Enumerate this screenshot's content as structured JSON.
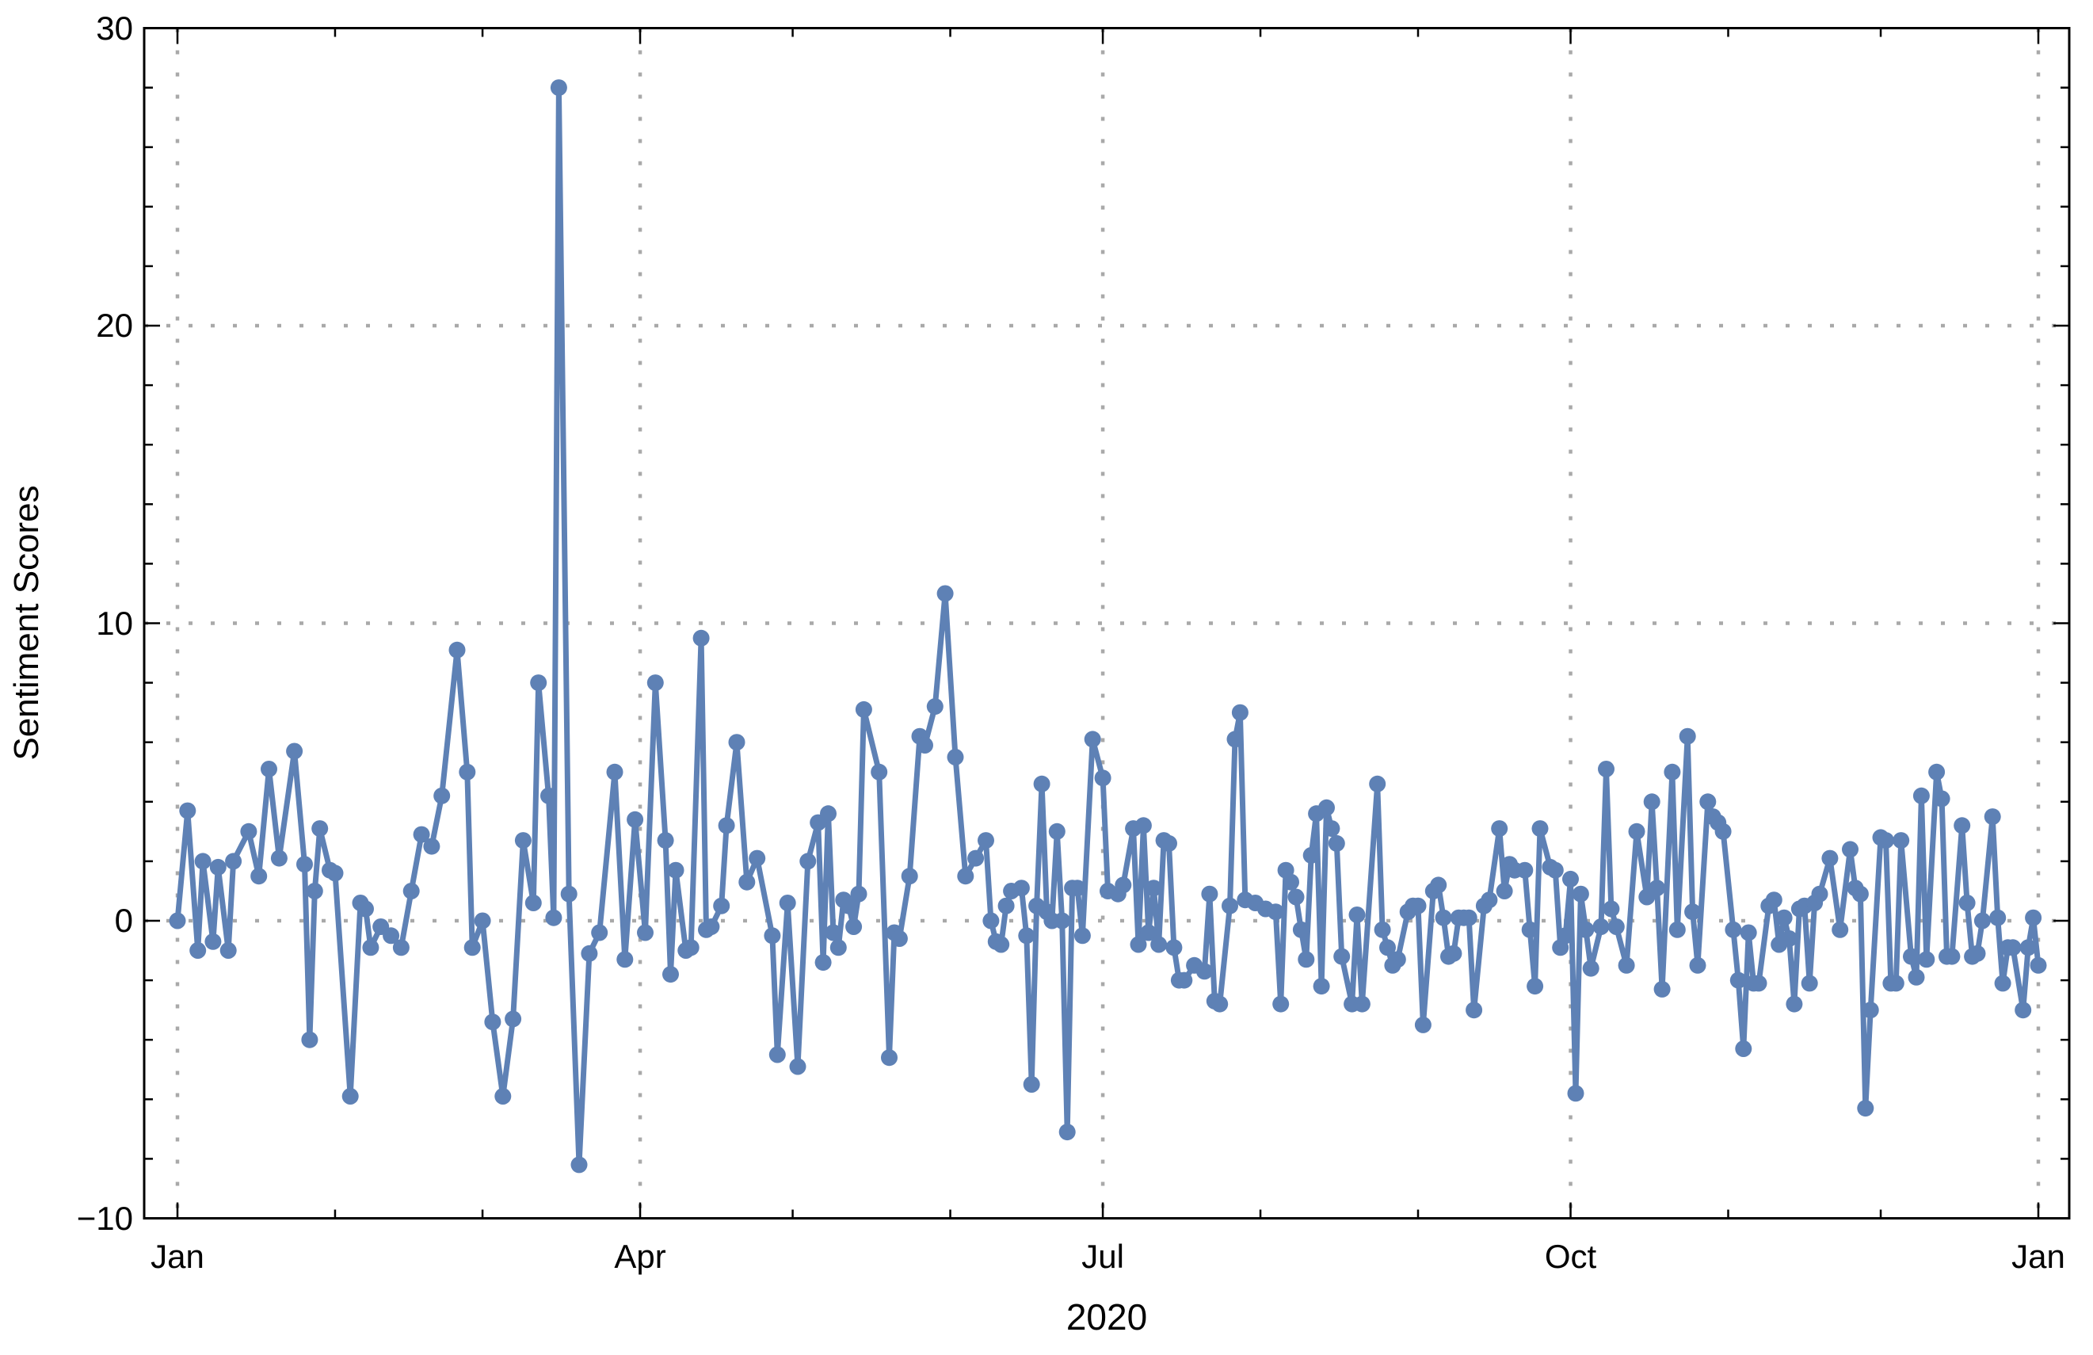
{
  "chart_data": {
    "type": "line",
    "title": "",
    "ylabel": "Sentiment Scores",
    "year_label": "2020",
    "legend": null,
    "grid": "dotted, at labeled major ticks only",
    "line_color": "#5E81B5",
    "grid_color": "#A9A9A9",
    "frame_color": "#000000",
    "ylim": [
      -10,
      30
    ],
    "xlim_days": [
      0,
      366
    ],
    "y_major_ticks": [
      -10,
      0,
      10,
      20,
      30
    ],
    "y_minor_tick_step": 2,
    "y_gridline_values": [
      0,
      10,
      20
    ],
    "x_month_tick_days": [
      0,
      31,
      60,
      91,
      121,
      152,
      182,
      213,
      244,
      274,
      305,
      335,
      366
    ],
    "x_major_ticks": [
      {
        "day": 0,
        "label": "Jan"
      },
      {
        "day": 91,
        "label": "Apr"
      },
      {
        "day": 182,
        "label": "Jul"
      },
      {
        "day": 274,
        "label": "Oct"
      },
      {
        "day": 366,
        "label": "Jan"
      }
    ],
    "series": [
      {
        "name": "Sentiment Scores",
        "color": "#5E81B5",
        "marker": "filled-circle",
        "points": [
          [
            0,
            0
          ],
          [
            2,
            3.7
          ],
          [
            4,
            -1
          ],
          [
            5,
            2
          ],
          [
            7,
            -0.7
          ],
          [
            8,
            1.8
          ],
          [
            10,
            -1
          ],
          [
            11,
            2
          ],
          [
            14,
            3
          ],
          [
            16,
            1.5
          ],
          [
            18,
            5.1
          ],
          [
            20,
            2.1
          ],
          [
            23,
            5.7
          ],
          [
            25,
            1.9
          ],
          [
            26,
            -4
          ],
          [
            27,
            1
          ],
          [
            28,
            3.1
          ],
          [
            30,
            1.7
          ],
          [
            31,
            1.6
          ],
          [
            34,
            -5.9
          ],
          [
            36,
            0.6
          ],
          [
            37,
            0.4
          ],
          [
            38,
            -0.9
          ],
          [
            40,
            -0.2
          ],
          [
            42,
            -0.5
          ],
          [
            44,
            -0.9
          ],
          [
            46,
            1
          ],
          [
            48,
            2.9
          ],
          [
            50,
            2.5
          ],
          [
            52,
            4.2
          ],
          [
            55,
            9.1
          ],
          [
            57,
            5
          ],
          [
            58,
            -0.9
          ],
          [
            60,
            0
          ],
          [
            62,
            -3.4
          ],
          [
            64,
            -5.9
          ],
          [
            66,
            -3.3
          ],
          [
            68,
            2.7
          ],
          [
            70,
            0.6
          ],
          [
            71,
            8
          ],
          [
            73,
            4.2
          ],
          [
            74,
            0.1
          ],
          [
            75,
            28
          ],
          [
            77,
            0.9
          ],
          [
            79,
            -8.2
          ],
          [
            81,
            -1.1
          ],
          [
            83,
            -0.4
          ],
          [
            86,
            5
          ],
          [
            88,
            -1.3
          ],
          [
            90,
            3.4
          ],
          [
            92,
            -0.4
          ],
          [
            94,
            8
          ],
          [
            96,
            2.7
          ],
          [
            97,
            -1.8
          ],
          [
            98,
            1.7
          ],
          [
            100,
            -1
          ],
          [
            101,
            -0.9
          ],
          [
            103,
            9.5
          ],
          [
            104,
            -0.3
          ],
          [
            105,
            -0.2
          ],
          [
            107,
            0.5
          ],
          [
            108,
            3.2
          ],
          [
            110,
            6
          ],
          [
            112,
            1.3
          ],
          [
            114,
            2.1
          ],
          [
            117,
            -0.5
          ],
          [
            118,
            -4.5
          ],
          [
            120,
            0.6
          ],
          [
            122,
            -4.9
          ],
          [
            124,
            2
          ],
          [
            126,
            3.3
          ],
          [
            127,
            -1.4
          ],
          [
            128,
            3.6
          ],
          [
            129,
            -0.4
          ],
          [
            130,
            -0.9
          ],
          [
            131,
            0.7
          ],
          [
            132,
            0.5
          ],
          [
            133,
            -0.2
          ],
          [
            134,
            0.9
          ],
          [
            135,
            7.1
          ],
          [
            138,
            5
          ],
          [
            140,
            -4.6
          ],
          [
            141,
            -0.4
          ],
          [
            142,
            -0.6
          ],
          [
            144,
            1.5
          ],
          [
            146,
            6.2
          ],
          [
            147,
            5.9
          ],
          [
            149,
            7.2
          ],
          [
            151,
            11
          ],
          [
            153,
            5.5
          ],
          [
            155,
            1.5
          ],
          [
            157,
            2.1
          ],
          [
            159,
            2.7
          ],
          [
            160,
            0
          ],
          [
            161,
            -0.7
          ],
          [
            162,
            -0.8
          ],
          [
            163,
            0.5
          ],
          [
            164,
            1
          ],
          [
            166,
            1.1
          ],
          [
            167,
            -0.5
          ],
          [
            168,
            -5.5
          ],
          [
            169,
            0.5
          ],
          [
            170,
            4.6
          ],
          [
            171,
            0.3
          ],
          [
            172,
            0
          ],
          [
            173,
            3
          ],
          [
            174,
            0
          ],
          [
            175,
            -7.1
          ],
          [
            176,
            1.1
          ],
          [
            177,
            1.1
          ],
          [
            178,
            -0.5
          ],
          [
            180,
            6.1
          ],
          [
            182,
            4.8
          ],
          [
            183,
            1
          ],
          [
            185,
            0.9
          ],
          [
            186,
            1.2
          ],
          [
            188,
            3.1
          ],
          [
            189,
            -0.8
          ],
          [
            190,
            3.2
          ],
          [
            191,
            -0.4
          ],
          [
            192,
            1.1
          ],
          [
            193,
            -0.8
          ],
          [
            194,
            2.7
          ],
          [
            195,
            2.6
          ],
          [
            196,
            -0.9
          ],
          [
            197,
            -2
          ],
          [
            198,
            -2
          ],
          [
            200,
            -1.5
          ],
          [
            202,
            -1.7
          ],
          [
            203,
            0.9
          ],
          [
            204,
            -2.7
          ],
          [
            205,
            -2.8
          ],
          [
            207,
            0.5
          ],
          [
            208,
            6.1
          ],
          [
            209,
            7
          ],
          [
            210,
            0.7
          ],
          [
            212,
            0.6
          ],
          [
            214,
            0.4
          ],
          [
            216,
            0.3
          ],
          [
            217,
            -2.8
          ],
          [
            218,
            1.7
          ],
          [
            219,
            1.3
          ],
          [
            220,
            0.8
          ],
          [
            221,
            -0.3
          ],
          [
            222,
            -1.3
          ],
          [
            223,
            2.2
          ],
          [
            224,
            3.6
          ],
          [
            225,
            -2.2
          ],
          [
            226,
            3.8
          ],
          [
            227,
            3.1
          ],
          [
            228,
            2.6
          ],
          [
            229,
            -1.2
          ],
          [
            231,
            -2.8
          ],
          [
            232,
            0.2
          ],
          [
            233,
            -2.8
          ],
          [
            236,
            4.6
          ],
          [
            237,
            -0.3
          ],
          [
            238,
            -0.9
          ],
          [
            239,
            -1.5
          ],
          [
            240,
            -1.3
          ],
          [
            242,
            0.3
          ],
          [
            243,
            0.5
          ],
          [
            244,
            0.5
          ],
          [
            245,
            -3.5
          ],
          [
            247,
            1
          ],
          [
            248,
            1.2
          ],
          [
            249,
            0.1
          ],
          [
            250,
            -1.2
          ],
          [
            251,
            -1.1
          ],
          [
            252,
            0.1
          ],
          [
            253,
            0.1
          ],
          [
            254,
            0.1
          ],
          [
            255,
            -3
          ],
          [
            257,
            0.5
          ],
          [
            258,
            0.7
          ],
          [
            260,
            3.1
          ],
          [
            261,
            1
          ],
          [
            262,
            1.9
          ],
          [
            263,
            1.7
          ],
          [
            265,
            1.7
          ],
          [
            266,
            -0.3
          ],
          [
            267,
            -2.2
          ],
          [
            268,
            3.1
          ],
          [
            270,
            1.8
          ],
          [
            271,
            1.7
          ],
          [
            272,
            -0.9
          ],
          [
            273,
            -0.5
          ],
          [
            274,
            1.4
          ],
          [
            275,
            -5.8
          ],
          [
            276,
            0.9
          ],
          [
            277,
            -0.3
          ],
          [
            278,
            -1.6
          ],
          [
            280,
            -0.2
          ],
          [
            281,
            5.1
          ],
          [
            282,
            0.4
          ],
          [
            283,
            -0.2
          ],
          [
            285,
            -1.5
          ],
          [
            287,
            3
          ],
          [
            289,
            0.8
          ],
          [
            290,
            4
          ],
          [
            291,
            1.1
          ],
          [
            292,
            -2.3
          ],
          [
            294,
            5
          ],
          [
            295,
            -0.3
          ],
          [
            297,
            6.2
          ],
          [
            298,
            0.3
          ],
          [
            299,
            -1.5
          ],
          [
            301,
            4
          ],
          [
            302,
            3.5
          ],
          [
            303,
            3.3
          ],
          [
            304,
            3
          ],
          [
            306,
            -0.3
          ],
          [
            307,
            -2
          ],
          [
            308,
            -4.3
          ],
          [
            309,
            -0.4
          ],
          [
            310,
            -2.1
          ],
          [
            311,
            -2.1
          ],
          [
            313,
            0.5
          ],
          [
            314,
            0.7
          ],
          [
            315,
            -0.8
          ],
          [
            316,
            0.1
          ],
          [
            317,
            -0.6
          ],
          [
            318,
            -2.8
          ],
          [
            319,
            0.4
          ],
          [
            320,
            0.5
          ],
          [
            321,
            -2.1
          ],
          [
            322,
            0.6
          ],
          [
            323,
            0.9
          ],
          [
            325,
            2.1
          ],
          [
            327,
            -0.3
          ],
          [
            329,
            2.4
          ],
          [
            330,
            1.1
          ],
          [
            331,
            0.9
          ],
          [
            332,
            -6.3
          ],
          [
            333,
            -3
          ],
          [
            335,
            2.8
          ],
          [
            336,
            2.7
          ],
          [
            337,
            -2.1
          ],
          [
            338,
            -2.1
          ],
          [
            339,
            2.7
          ],
          [
            341,
            -1.2
          ],
          [
            342,
            -1.9
          ],
          [
            343,
            4.2
          ],
          [
            344,
            -1.3
          ],
          [
            346,
            5
          ],
          [
            347,
            4.1
          ],
          [
            348,
            -1.2
          ],
          [
            349,
            -1.2
          ],
          [
            351,
            3.2
          ],
          [
            352,
            0.6
          ],
          [
            353,
            -1.2
          ],
          [
            354,
            -1.1
          ],
          [
            355,
            0
          ],
          [
            357,
            3.5
          ],
          [
            358,
            0.1
          ],
          [
            359,
            -2.1
          ],
          [
            360,
            -0.9
          ],
          [
            361,
            -0.9
          ],
          [
            363,
            -3
          ],
          [
            364,
            -0.9
          ],
          [
            365,
            0.1
          ],
          [
            366,
            -1.5
          ]
        ]
      }
    ]
  }
}
